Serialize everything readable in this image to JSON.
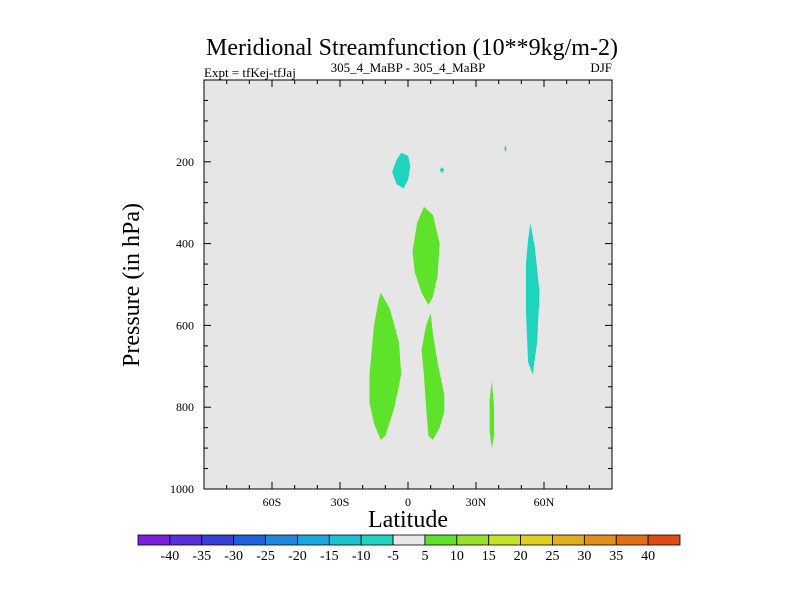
{
  "chart_data": {
    "type": "contour",
    "title": "Meridional Streamfunction (10**9kg/m-2)",
    "subtitle_left": "Expt = tfKej-tfJaj",
    "subtitle_center": "305_4_MaBP - 305_4_MaBP",
    "subtitle_right": "DJF",
    "xlabel": "Latitude",
    "ylabel": "Pressure (in hPa)",
    "xlim": [
      -90,
      90
    ],
    "ylim": [
      1000,
      0
    ],
    "x_ticks": [
      {
        "value": -60,
        "label": "60S"
      },
      {
        "value": -30,
        "label": "30S"
      },
      {
        "value": 0,
        "label": "0"
      },
      {
        "value": 30,
        "label": "30N"
      },
      {
        "value": 60,
        "label": "60N"
      }
    ],
    "y_ticks": [
      {
        "value": 200,
        "label": "200"
      },
      {
        "value": 400,
        "label": "400"
      },
      {
        "value": 600,
        "label": "600"
      },
      {
        "value": 800,
        "label": "800"
      },
      {
        "value": 1000,
        "label": "1000"
      }
    ],
    "background_color": "#e6e6e6",
    "contour_regions": [
      {
        "level": 10,
        "color": "#5ee22a",
        "points": [
          [
            -12,
            520
          ],
          [
            -8,
            560
          ],
          [
            -4,
            640
          ],
          [
            -3,
            720
          ],
          [
            -6,
            800
          ],
          [
            -10,
            870
          ],
          [
            -12,
            880
          ],
          [
            -15,
            840
          ],
          [
            -17,
            790
          ],
          [
            -17,
            720
          ],
          [
            -15,
            600
          ],
          [
            -13,
            540
          ]
        ]
      },
      {
        "level": 10,
        "color": "#5ee22a",
        "points": [
          [
            7,
            310
          ],
          [
            11,
            330
          ],
          [
            14,
            400
          ],
          [
            13,
            480
          ],
          [
            11,
            530
          ],
          [
            9,
            550
          ],
          [
            6,
            520
          ],
          [
            3,
            470
          ],
          [
            2,
            420
          ],
          [
            4,
            350
          ]
        ]
      },
      {
        "level": 10,
        "color": "#5ee22a",
        "points": [
          [
            10,
            570
          ],
          [
            11,
            620
          ],
          [
            13,
            690
          ],
          [
            16,
            770
          ],
          [
            16,
            810
          ],
          [
            14,
            850
          ],
          [
            11,
            880
          ],
          [
            9,
            870
          ],
          [
            8,
            800
          ],
          [
            7,
            720
          ],
          [
            6,
            660
          ],
          [
            8,
            600
          ]
        ]
      },
      {
        "level": 10,
        "color": "#5ee22a",
        "points": [
          [
            37,
            735
          ],
          [
            38,
            800
          ],
          [
            38,
            870
          ],
          [
            37,
            900
          ],
          [
            36,
            860
          ],
          [
            36,
            780
          ]
        ]
      },
      {
        "level": -5,
        "color": "#1ed4bd",
        "points": [
          [
            -3,
            178
          ],
          [
            0,
            185
          ],
          [
            1,
            210
          ],
          [
            0,
            245
          ],
          [
            -2,
            265
          ],
          [
            -5,
            255
          ],
          [
            -7,
            225
          ],
          [
            -5,
            195
          ]
        ]
      },
      {
        "level": -5,
        "color": "#1ed4bd",
        "points": [
          [
            54,
            350
          ],
          [
            56,
            410
          ],
          [
            58,
            520
          ],
          [
            57,
            640
          ],
          [
            55,
            720
          ],
          [
            53,
            690
          ],
          [
            52,
            560
          ],
          [
            52,
            450
          ],
          [
            53,
            390
          ]
        ]
      },
      {
        "level": -5,
        "color": "#1ed4bd",
        "points": [
          [
            15,
            213
          ],
          [
            16,
            220
          ],
          [
            15,
            228
          ],
          [
            14,
            220
          ]
        ]
      },
      {
        "level": -5,
        "color": "#1ed4bd",
        "points": [
          [
            43,
            160
          ],
          [
            43.5,
            168
          ],
          [
            43,
            176
          ],
          [
            42.5,
            168
          ]
        ]
      }
    ],
    "colorbar": {
      "labels": [
        "-40",
        "-35",
        "-30",
        "-25",
        "-20",
        "-15",
        "-10",
        "-5",
        "5",
        "10",
        "15",
        "20",
        "25",
        "30",
        "35",
        "40"
      ],
      "colors": [
        "#7b1fe0",
        "#5b2de0",
        "#3840d9",
        "#1e62dd",
        "#1e89dd",
        "#1aa6df",
        "#1cc2cf",
        "#1ed4bd",
        "#e8e8e8",
        "#5ee22a",
        "#95e22a",
        "#c5e22a",
        "#e1cf20",
        "#e1ae1c",
        "#e0901a",
        "#e06e18",
        "#e04a14"
      ]
    }
  }
}
